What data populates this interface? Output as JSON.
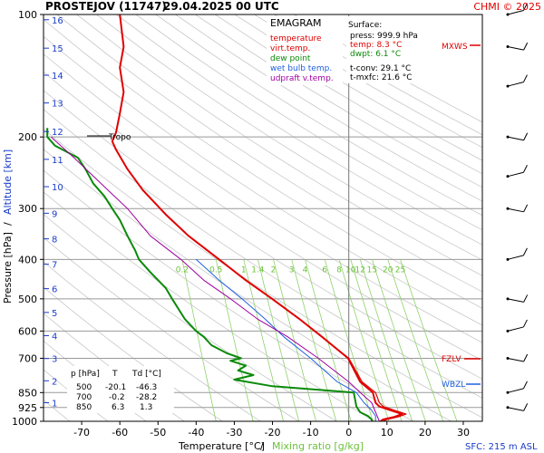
{
  "header": {
    "station": "PROSTEJOV (11747)",
    "datetime": "29.04.2025 00 UTC",
    "credit": "CHMI © 2025"
  },
  "legend": {
    "title": "EMAGRAM",
    "items": [
      {
        "label": "temperature",
        "color": "#e00000"
      },
      {
        "label": "virt.temp.",
        "color": "#e00000"
      },
      {
        "label": "dew point",
        "color": "#0a8a0a"
      },
      {
        "label": "wet bulb temp.",
        "color": "#2060e0"
      },
      {
        "label": "udpraft v.temp.",
        "color": "#a000a0"
      }
    ]
  },
  "surface": {
    "title": "Surface:",
    "press": "press: 999.9 hPa",
    "temp": "temp: 8.3 °C",
    "dwpt": "dwpt: 6.1 °C",
    "tconv": "t-conv: 29.1 °C",
    "tmxfc": "t-mxfc: 21.6 °C"
  },
  "table": {
    "headers": [
      "p [hPa]",
      "T",
      "Td [°C]"
    ],
    "rows": [
      [
        "500",
        "-20.1",
        "-46.3"
      ],
      [
        "700",
        "-0.2",
        "-28.2"
      ],
      [
        "850",
        "6.3",
        "1.3"
      ]
    ]
  },
  "labels": {
    "tropo": "Tropo",
    "mxws": "MXWS",
    "fzlv": "FZLV",
    "wbzl": "WBZL",
    "sfc": "SFC: 215 m ASL",
    "xaxis_temp": "Temperature [°C]",
    "xaxis_sep": "/",
    "xaxis_mix": "Mixing ratio [g/kg]",
    "yaxis_p": "Pressure [hPa]",
    "yaxis_sep": "/",
    "yaxis_alt": "Altitude [km]"
  },
  "chart_data": {
    "type": "line",
    "xlabel": "Temperature [°C] / Mixing ratio [g/kg]",
    "ylabel": "Pressure [hPa] / Altitude [km]",
    "xlim": [
      -80,
      35
    ],
    "ylim": [
      1000,
      100
    ],
    "y_scale": "log",
    "x_ticks": [
      -70,
      -60,
      -50,
      -40,
      -30,
      -20,
      -10,
      0,
      10,
      20,
      30
    ],
    "y_ticks": [
      100,
      200,
      300,
      400,
      500,
      600,
      700,
      850,
      925,
      1000
    ],
    "altitude_ticks_km": [
      {
        "km": "1",
        "p": 900
      },
      {
        "km": "2",
        "p": 795
      },
      {
        "km": "3",
        "p": 701
      },
      {
        "km": "4",
        "p": 616
      },
      {
        "km": "5",
        "p": 540
      },
      {
        "km": "6",
        "p": 472
      },
      {
        "km": "7",
        "p": 411
      },
      {
        "km": "8",
        "p": 356
      },
      {
        "km": "9",
        "p": 308
      },
      {
        "km": "10",
        "p": 265
      },
      {
        "km": "11",
        "p": 227
      },
      {
        "km": "12",
        "p": 194
      },
      {
        "km": "13",
        "p": 165
      },
      {
        "km": "14",
        "p": 141
      },
      {
        "km": "15",
        "p": 121
      },
      {
        "km": "16",
        "p": 103
      }
    ],
    "mixing_ratio_labels": [
      "0.2",
      "0.5",
      "1",
      "1.4",
      "2",
      "3",
      "4",
      "6",
      "8",
      "10",
      "12",
      "15",
      "20",
      "25"
    ],
    "series": [
      {
        "name": "temperature",
        "color": "#e00000",
        "points": [
          [
            8.3,
            1000
          ],
          [
            9,
            990
          ],
          [
            12,
            975
          ],
          [
            14,
            960
          ],
          [
            11,
            940
          ],
          [
            8,
            920
          ],
          [
            7,
            900
          ],
          [
            6.3,
            850
          ],
          [
            3,
            800
          ],
          [
            -0.2,
            700
          ],
          [
            -7,
            620
          ],
          [
            -13,
            560
          ],
          [
            -20.1,
            500
          ],
          [
            -27,
            450
          ],
          [
            -34,
            400
          ],
          [
            -42,
            350
          ],
          [
            -48,
            310
          ],
          [
            -54,
            270
          ],
          [
            -58,
            240
          ],
          [
            -61,
            215
          ],
          [
            -62,
            205
          ],
          [
            -61,
            195
          ],
          [
            -60,
            175
          ],
          [
            -59,
            155
          ],
          [
            -60,
            135
          ],
          [
            -59,
            120
          ],
          [
            -60,
            100
          ]
        ]
      },
      {
        "name": "virt.temp.",
        "color": "#e00000",
        "points": [
          [
            9,
            1000
          ],
          [
            10,
            990
          ],
          [
            13,
            975
          ],
          [
            15,
            960
          ],
          [
            12,
            940
          ],
          [
            9,
            920
          ],
          [
            8,
            900
          ],
          [
            7,
            850
          ],
          [
            3.5,
            800
          ],
          [
            0,
            700
          ],
          [
            -7,
            620
          ],
          [
            -13,
            560
          ],
          [
            -20,
            500
          ],
          [
            -27,
            450
          ],
          [
            -34,
            400
          ],
          [
            -42,
            350
          ],
          [
            -48,
            310
          ],
          [
            -54,
            270
          ],
          [
            -58,
            240
          ],
          [
            -61,
            215
          ],
          [
            -62,
            205
          ],
          [
            -61,
            195
          ],
          [
            -60,
            175
          ],
          [
            -59,
            155
          ],
          [
            -60,
            135
          ],
          [
            -59,
            120
          ],
          [
            -60,
            100
          ]
        ]
      },
      {
        "name": "dew point",
        "color": "#0a8a0a",
        "points": [
          [
            6.1,
            1000
          ],
          [
            6,
            990
          ],
          [
            5,
            970
          ],
          [
            3,
            950
          ],
          [
            2,
            920
          ],
          [
            1.3,
            850
          ],
          [
            -20,
            820
          ],
          [
            -30,
            790
          ],
          [
            -25,
            770
          ],
          [
            -29,
            750
          ],
          [
            -27,
            730
          ],
          [
            -31,
            710
          ],
          [
            -28.2,
            700
          ],
          [
            -32,
            680
          ],
          [
            -36,
            650
          ],
          [
            -38,
            620
          ],
          [
            -40,
            600
          ],
          [
            -43,
            560
          ],
          [
            -46.3,
            500
          ],
          [
            -48,
            470
          ],
          [
            -52,
            430
          ],
          [
            -55,
            400
          ],
          [
            -56,
            380
          ],
          [
            -58,
            350
          ],
          [
            -60,
            320
          ],
          [
            -62,
            300
          ],
          [
            -64,
            280
          ],
          [
            -67,
            260
          ],
          [
            -69,
            240
          ],
          [
            -71,
            225
          ],
          [
            -77,
            210
          ],
          [
            -79,
            200
          ],
          [
            -79,
            190
          ]
        ]
      },
      {
        "name": "wet bulb temp.",
        "color": "#2060e0",
        "points": [
          [
            7,
            1000
          ],
          [
            7,
            970
          ],
          [
            6,
            940
          ],
          [
            4,
            900
          ],
          [
            2,
            850
          ],
          [
            -3,
            800
          ],
          [
            -10,
            700
          ],
          [
            -17,
            620
          ],
          [
            -22,
            560
          ],
          [
            -28,
            500
          ],
          [
            -34,
            450
          ],
          [
            -40,
            400
          ]
        ]
      },
      {
        "name": "udpraft v.temp.",
        "color": "#a000a0",
        "points": [
          [
            8,
            1000
          ],
          [
            6,
            900
          ],
          [
            3,
            850
          ],
          [
            0,
            800
          ],
          [
            -8,
            700
          ],
          [
            -16,
            620
          ],
          [
            -24,
            560
          ],
          [
            -31,
            500
          ],
          [
            -38,
            450
          ],
          [
            -44,
            400
          ],
          [
            -52,
            350
          ],
          [
            -58,
            300
          ],
          [
            -65,
            260
          ],
          [
            -72,
            225
          ],
          [
            -78,
            200
          ]
        ]
      }
    ],
    "wind_barbs_pressure": [
      925,
      850,
      700,
      600,
      500,
      400,
      300,
      250,
      200,
      150,
      120,
      100
    ]
  }
}
